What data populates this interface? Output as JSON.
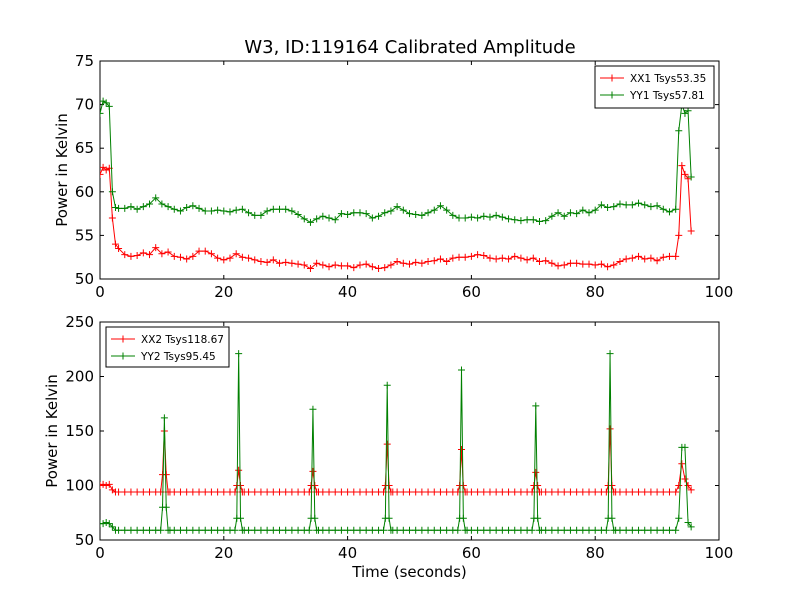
{
  "figure": {
    "title": "W3, ID:119164 Calibrated Amplitude",
    "xlabel": "Time (seconds)"
  },
  "colors": {
    "series_red": "#ff0000",
    "series_green": "#008000",
    "axes": "#000000",
    "background": "#ffffff"
  },
  "chart_data": [
    {
      "type": "line",
      "title": "W3, ID:119164 Calibrated Amplitude",
      "xlabel": "",
      "ylabel": "Power in Kelvin",
      "xlim": [
        0,
        100
      ],
      "ylim": [
        50,
        75
      ],
      "xticks": [
        0,
        20,
        40,
        60,
        80,
        100
      ],
      "yticks": [
        50,
        55,
        60,
        65,
        70,
        75
      ],
      "grid": false,
      "legend_position": "top-right",
      "marker": "plus",
      "series": [
        {
          "name": "XX1 Tsys53.35",
          "color": "#ff0000",
          "x": [
            0,
            0.5,
            1,
            1.5,
            2,
            2.5,
            3,
            4,
            5,
            6,
            7,
            8,
            9,
            10,
            11,
            12,
            13,
            14,
            15,
            16,
            17,
            18,
            19,
            20,
            21,
            22,
            23,
            24,
            25,
            26,
            27,
            28,
            29,
            30,
            31,
            32,
            33,
            34,
            35,
            36,
            37,
            38,
            39,
            40,
            41,
            42,
            43,
            44,
            45,
            46,
            47,
            48,
            49,
            50,
            51,
            52,
            53,
            54,
            55,
            56,
            57,
            58,
            59,
            60,
            61,
            62,
            63,
            64,
            65,
            66,
            67,
            68,
            69,
            70,
            71,
            72,
            73,
            74,
            75,
            76,
            77,
            78,
            79,
            80,
            81,
            82,
            83,
            84,
            85,
            86,
            87,
            88,
            89,
            90,
            91,
            92,
            93,
            93.5,
            94,
            94.5,
            95,
            95.5
          ],
          "values": [
            62,
            62.8,
            62.5,
            62.7,
            57,
            54,
            53.5,
            52.8,
            52.6,
            52.7,
            53,
            52.8,
            53.6,
            52.9,
            53.1,
            52.6,
            52.5,
            52.3,
            52.6,
            53.2,
            53.2,
            52.9,
            52.4,
            52.2,
            52.4,
            52.9,
            52.5,
            52.4,
            52.2,
            52,
            51.9,
            52.2,
            51.8,
            51.9,
            51.8,
            51.7,
            51.6,
            51.2,
            51.8,
            51.6,
            51.4,
            51.6,
            51.5,
            51.5,
            51.3,
            51.6,
            51.7,
            51.4,
            51.2,
            51.3,
            51.6,
            52,
            51.8,
            51.7,
            51.9,
            51.8,
            52,
            52.1,
            52.3,
            52,
            52.4,
            52.5,
            52.5,
            52.6,
            52.8,
            52.7,
            52.4,
            52.3,
            52.4,
            52.3,
            52.6,
            52.4,
            52.2,
            52.4,
            52,
            52.1,
            51.8,
            51.5,
            51.6,
            51.8,
            51.8,
            51.7,
            51.7,
            51.6,
            51.7,
            51.4,
            51.6,
            52,
            52.3,
            52.4,
            52.6,
            52.3,
            52.4,
            52.1,
            52.5,
            52.6,
            52.6,
            55,
            63,
            62,
            61.5,
            55.5
          ]
        },
        {
          "name": "YY1 Tsys57.81",
          "color": "#008000",
          "x": [
            0,
            0.5,
            1,
            1.5,
            2,
            2.5,
            3,
            4,
            5,
            6,
            7,
            8,
            9,
            10,
            11,
            12,
            13,
            14,
            15,
            16,
            17,
            18,
            19,
            20,
            21,
            22,
            23,
            24,
            25,
            26,
            27,
            28,
            29,
            30,
            31,
            32,
            33,
            34,
            35,
            36,
            37,
            38,
            39,
            40,
            41,
            42,
            43,
            44,
            45,
            46,
            47,
            48,
            49,
            50,
            51,
            52,
            53,
            54,
            55,
            56,
            57,
            58,
            59,
            60,
            61,
            62,
            63,
            64,
            65,
            66,
            67,
            68,
            69,
            70,
            71,
            72,
            73,
            74,
            75,
            76,
            77,
            78,
            79,
            80,
            81,
            82,
            83,
            84,
            85,
            86,
            87,
            88,
            89,
            90,
            91,
            92,
            93,
            93.5,
            94,
            94.5,
            95,
            95.5
          ],
          "values": [
            69,
            70.4,
            70.2,
            69.8,
            60,
            58.2,
            58.1,
            58.1,
            58.3,
            58,
            58.3,
            58.6,
            59.3,
            58.6,
            58.3,
            58,
            57.8,
            58.2,
            58.4,
            58.1,
            57.8,
            57.8,
            57.9,
            57.8,
            57.7,
            57.9,
            58,
            57.6,
            57.3,
            57.3,
            57.8,
            58,
            58,
            58,
            57.8,
            57.4,
            56.9,
            56.5,
            56.9,
            57.2,
            57,
            56.8,
            57.5,
            57.4,
            57.6,
            57.6,
            57.5,
            57,
            57.2,
            57.6,
            57.8,
            58.3,
            57.9,
            57.5,
            57.4,
            57.3,
            57.6,
            57.9,
            58.4,
            57.9,
            57.3,
            57,
            57,
            57.1,
            57,
            57.2,
            57.1,
            57.3,
            57.1,
            56.9,
            56.8,
            56.7,
            56.8,
            56.8,
            56.6,
            56.7,
            57.2,
            57.6,
            57.2,
            57.6,
            57.5,
            57.9,
            57.6,
            57.9,
            58.5,
            58.2,
            58.3,
            58.6,
            58.5,
            58.5,
            58.7,
            58.5,
            58.3,
            58.4,
            58,
            57.7,
            58,
            67,
            70,
            69,
            69.3,
            61.7
          ]
        }
      ]
    },
    {
      "type": "line",
      "title": "",
      "xlabel": "Time (seconds)",
      "ylabel": "Power in Kelvin",
      "xlim": [
        0,
        100
      ],
      "ylim": [
        50,
        250
      ],
      "xticks": [
        0,
        20,
        40,
        60,
        80,
        100
      ],
      "yticks": [
        50,
        100,
        150,
        200,
        250
      ],
      "grid": false,
      "legend_position": "top-left",
      "marker": "plus",
      "series": [
        {
          "name": "XX2 Tsys118.67",
          "color": "#ff0000",
          "x": [
            0,
            0.5,
            1,
            1.5,
            2,
            2.5,
            3,
            4,
            5,
            6,
            7,
            8,
            9,
            9.8,
            10.1,
            10.4,
            10.7,
            11,
            11.3,
            12,
            13,
            14,
            15,
            16,
            17,
            18,
            19,
            20,
            21,
            21.8,
            22.1,
            22.4,
            22.7,
            23,
            23.3,
            24,
            25,
            26,
            27,
            28,
            29,
            30,
            31,
            32,
            33,
            33.8,
            34.1,
            34.4,
            34.7,
            35,
            35.3,
            36,
            37,
            38,
            39,
            40,
            41,
            42,
            43,
            44,
            45,
            45.8,
            46.1,
            46.4,
            46.7,
            47,
            47.3,
            48,
            49,
            50,
            51,
            52,
            53,
            54,
            55,
            56,
            57,
            57.8,
            58.1,
            58.4,
            58.7,
            59,
            59.3,
            60,
            61,
            62,
            63,
            64,
            65,
            66,
            67,
            68,
            69,
            69.8,
            70.1,
            70.4,
            70.7,
            71,
            71.3,
            72,
            73,
            74,
            75,
            76,
            77,
            78,
            79,
            80,
            81,
            81.8,
            82.1,
            82.4,
            82.7,
            83,
            83.3,
            84,
            85,
            86,
            87,
            88,
            89,
            90,
            91,
            92,
            93,
            93.5,
            94,
            94.5,
            95,
            95.5
          ],
          "values": [
            100,
            101,
            100,
            101,
            96,
            94,
            94,
            94,
            94,
            94,
            94,
            94,
            94,
            94,
            110,
            150,
            110,
            94,
            94,
            94,
            94,
            94,
            94,
            94,
            94,
            94,
            94,
            94,
            94,
            94,
            100,
            114,
            100,
            94,
            94,
            94,
            94,
            94,
            94,
            94,
            94,
            94,
            94,
            94,
            94,
            94,
            100,
            113,
            100,
            94,
            94,
            94,
            94,
            94,
            94,
            94,
            94,
            94,
            94,
            94,
            94,
            94,
            100,
            138,
            100,
            94,
            94,
            94,
            94,
            94,
            94,
            94,
            94,
            94,
            94,
            94,
            94,
            94,
            100,
            133,
            100,
            94,
            94,
            94,
            94,
            94,
            94,
            94,
            94,
            94,
            94,
            94,
            94,
            94,
            100,
            112,
            100,
            94,
            94,
            94,
            94,
            94,
            94,
            94,
            94,
            94,
            94,
            94,
            94,
            94,
            100,
            152,
            100,
            94,
            94,
            94,
            94,
            94,
            94,
            94,
            94,
            94,
            94,
            94,
            94,
            100,
            120,
            106,
            100,
            96
          ]
        },
        {
          "name": "YY2 Tsys95.45",
          "color": "#008000",
          "x": [
            0,
            0.5,
            1,
            1.5,
            2,
            2.5,
            3,
            4,
            5,
            6,
            7,
            8,
            9,
            9.8,
            10.1,
            10.4,
            10.7,
            11,
            11.3,
            12,
            13,
            14,
            15,
            16,
            17,
            18,
            19,
            20,
            21,
            21.8,
            22.1,
            22.4,
            22.7,
            23,
            23.3,
            24,
            25,
            26,
            27,
            28,
            29,
            30,
            31,
            32,
            33,
            33.8,
            34.1,
            34.4,
            34.7,
            35,
            35.3,
            36,
            37,
            38,
            39,
            40,
            41,
            42,
            43,
            44,
            45,
            45.8,
            46.1,
            46.4,
            46.7,
            47,
            47.3,
            48,
            49,
            50,
            51,
            52,
            53,
            54,
            55,
            56,
            57,
            57.8,
            58.1,
            58.4,
            58.7,
            59,
            59.3,
            60,
            61,
            62,
            63,
            64,
            65,
            66,
            67,
            68,
            69,
            69.8,
            70.1,
            70.4,
            70.7,
            71,
            71.3,
            72,
            73,
            74,
            75,
            76,
            77,
            78,
            79,
            80,
            81,
            81.8,
            82.1,
            82.4,
            82.7,
            83,
            83.3,
            84,
            85,
            86,
            87,
            88,
            89,
            90,
            91,
            92,
            93,
            93.5,
            94,
            94.5,
            95,
            95.5
          ],
          "values": [
            65,
            65,
            66,
            65,
            62,
            59,
            59,
            59,
            59,
            59,
            59,
            59,
            59,
            59,
            80,
            162,
            80,
            59,
            59,
            59,
            59,
            59,
            59,
            59,
            59,
            59,
            59,
            59,
            59,
            59,
            70,
            221,
            70,
            59,
            59,
            59,
            59,
            59,
            59,
            59,
            59,
            59,
            59,
            59,
            59,
            59,
            70,
            170,
            70,
            59,
            59,
            59,
            59,
            59,
            59,
            59,
            59,
            59,
            59,
            59,
            59,
            59,
            70,
            192,
            70,
            59,
            59,
            59,
            59,
            59,
            59,
            59,
            59,
            59,
            59,
            59,
            59,
            59,
            70,
            206,
            70,
            59,
            59,
            59,
            59,
            59,
            59,
            59,
            59,
            59,
            59,
            59,
            59,
            59,
            70,
            173,
            70,
            59,
            59,
            59,
            59,
            59,
            59,
            59,
            59,
            59,
            59,
            59,
            59,
            59,
            70,
            221,
            70,
            59,
            59,
            59,
            59,
            59,
            59,
            59,
            59,
            59,
            59,
            59,
            59,
            70,
            135,
            135,
            66,
            62
          ]
        }
      ]
    }
  ]
}
